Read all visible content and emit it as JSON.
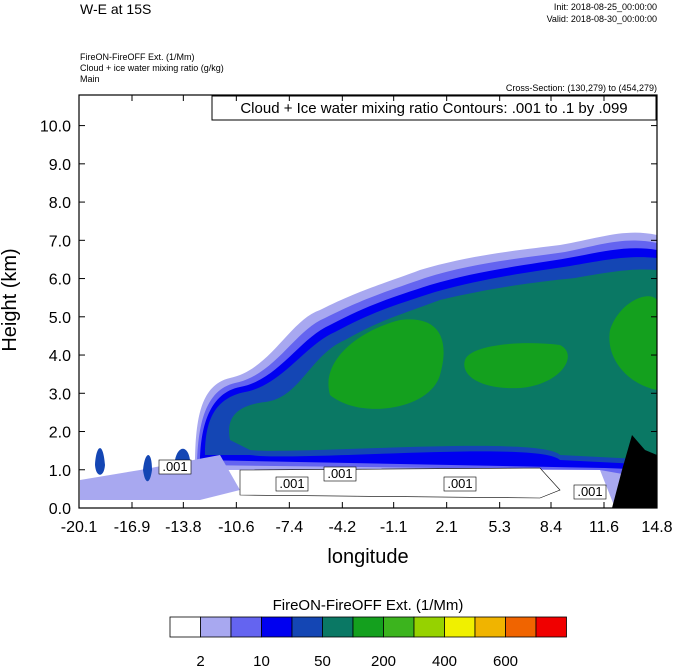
{
  "chart_data": {
    "type": "contour",
    "title": "W-E at 15S",
    "init": "Init: 2018-08-25_00:00:00",
    "valid": "Valid: 2018-08-30_00:00:00",
    "subtitles": [
      "FireON-FireOFF Ext.   (1/Mm)",
      "Cloud + ice water mixing ratio   (g/kg)",
      "Main"
    ],
    "cross_section": "Cross-Section: (130,279) to (454,279)",
    "contour_info": "Cloud + Ice water mixing ratio Contours: .001 to .1 by .099",
    "contour_labels": [
      ".001",
      ".001",
      ".001",
      ".001",
      ".001"
    ],
    "ylabel": "Height (km)",
    "xlabel": "longitude",
    "xlim": [
      -20.1,
      14.8
    ],
    "xticks": [
      -20.1,
      -16.9,
      -13.8,
      -10.6,
      -7.4,
      -4.2,
      -1.1,
      2.1,
      5.3,
      8.4,
      11.6,
      14.8
    ],
    "ylim": [
      0,
      10.8
    ],
    "yticks": [
      {
        "value": 0,
        "label": "0.0"
      },
      {
        "value": 1,
        "label": "1.0"
      },
      {
        "value": 2,
        "label": "2.0"
      },
      {
        "value": 3,
        "label": "3.0"
      },
      {
        "value": 4,
        "label": "4.0"
      },
      {
        "value": 5,
        "label": "5.0"
      },
      {
        "value": 6,
        "label": "6.0"
      },
      {
        "value": 7,
        "label": "7.0"
      },
      {
        "value": 8,
        "label": "8.0"
      },
      {
        "value": 9,
        "label": "9.0"
      },
      {
        "value": 10,
        "label": "10.0"
      }
    ],
    "colorbar": {
      "title": "FireON-FireOFF Ext.  (1/Mm)",
      "colors": [
        "#ffffff",
        "#a8a8f0",
        "#6464f0",
        "#0000f0",
        "#1446b4",
        "#0a7864",
        "#14a01e",
        "#3cb41e",
        "#96d200",
        "#f0f000",
        "#f0b400",
        "#f06400",
        "#f00000"
      ],
      "levels": [
        2,
        null,
        10,
        null,
        50,
        null,
        200,
        null,
        400,
        null,
        600,
        null
      ]
    }
  }
}
